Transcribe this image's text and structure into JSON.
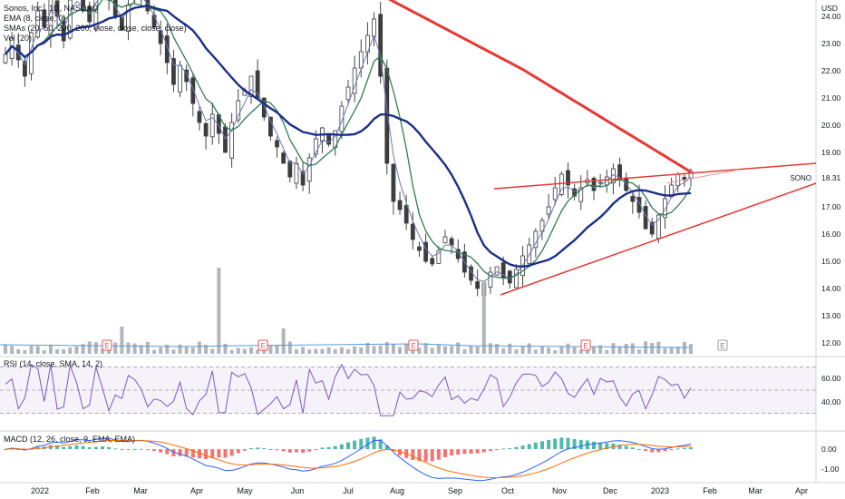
{
  "legend": {
    "title": "Sonos, Inc., 1D, NASDAQ",
    "ema": "EMA (8, close, 0)",
    "smas": "SMAs (20, 50, 200, 200, close, close, close, close)",
    "vol": "Vol (20)"
  },
  "rsi_legend": "RSI (14, close, SMA, 14, 2)",
  "macd_legend": "MACD (12, 26, close, 9, EMA, EMA)",
  "currency": "USD",
  "symbol": "SONO",
  "last_price": "18.31",
  "colors": {
    "up": "#26a69a",
    "down": "#ef5350",
    "candle": "#3d3d3d",
    "ema8": "#6b7bb5",
    "sma20": "#2e7d52",
    "sma50": "#1a2f8a",
    "sma200": "#e53935",
    "trend": "#e53935",
    "rsi": "#7e57c2",
    "macd": "#2962ff",
    "signal": "#ff6d00"
  },
  "chart_data": [
    {
      "type": "candlestick",
      "title": "Sonos, Inc., 1D, NASDAQ",
      "y_ticks": [
        "24.00",
        "23.00",
        "22.00",
        "21.00",
        "20.00",
        "19.00",
        "18.00",
        "17.00",
        "16.00",
        "15.00",
        "14.00",
        "13.00",
        "12.00"
      ],
      "ylim": [
        11.6,
        24.6
      ],
      "x_ticks": [
        "2022",
        "Feb",
        "Mar",
        "Apr",
        "May",
        "Jun",
        "Jul",
        "Aug",
        "Sep",
        "Oct",
        "Nov",
        "Dec",
        "2023",
        "Feb",
        "Mar",
        "Apr"
      ],
      "closes": [
        22.6,
        23.2,
        22.4,
        21.8,
        23.4,
        24.2,
        23.6,
        24.8,
        24.0,
        23.1,
        24.6,
        25.0,
        24.2,
        23.8,
        24.9,
        25.2,
        24.6,
        24.0,
        23.5,
        24.4,
        25.1,
        24.8,
        24.2,
        23.6,
        23.0,
        22.3,
        21.5,
        22.2,
        21.6,
        20.8,
        20.1,
        19.6,
        20.4,
        19.7,
        19.0,
        20.1,
        20.9,
        21.3,
        21.8,
        21.0,
        20.3,
        19.6,
        19.2,
        18.6,
        18.1,
        18.6,
        17.8,
        18.8,
        19.5,
        19.9,
        19.3,
        19.8,
        20.7,
        21.4,
        22.1,
        22.7,
        23.3,
        23.9,
        21.8,
        18.6,
        17.2,
        16.9,
        16.4,
        15.8,
        15.4,
        15.0,
        14.9,
        15.4,
        15.9,
        15.6,
        15.1,
        14.6,
        14.3,
        14.0,
        14.2,
        14.6,
        14.8,
        14.4,
        14.2,
        14.7,
        15.2,
        15.6,
        16.1,
        16.5,
        17.0,
        17.7,
        18.2,
        17.8,
        17.4,
        17.7,
        18.0,
        17.6,
        17.9,
        18.1,
        18.4,
        18.0,
        17.6,
        17.2,
        16.8,
        16.2,
        16.0,
        16.7,
        17.3,
        17.8,
        18.2,
        18.0,
        18.31
      ],
      "volume_events": [
        "E",
        "E",
        "E",
        "E",
        "E"
      ],
      "annotations": [
        "SONO 18.31"
      ]
    },
    {
      "type": "line",
      "title": "RSI (14, close, SMA, 14, 2)",
      "y_ticks": [
        "60.00",
        "40.00"
      ],
      "ylim": [
        25,
        75
      ],
      "bands": [
        70,
        50,
        30
      ]
    },
    {
      "type": "bar",
      "title": "MACD (12, 26, close, 9, EMA, EMA)",
      "y_ticks": [
        "0.00",
        "-1.00"
      ],
      "ylim": [
        -1.6,
        0.6
      ]
    }
  ]
}
